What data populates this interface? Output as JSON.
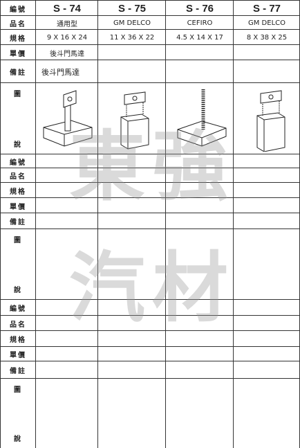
{
  "tables": [
    {
      "row_labels": [
        "編號",
        "品名",
        "規格",
        "單價",
        "備註"
      ],
      "figure_label": {
        "top": "圖",
        "bottom": "說"
      },
      "products": [
        {
          "code": "S - 74",
          "name": "通用型",
          "size": "9 X 16 X 24",
          "note": "後斗門馬達"
        },
        {
          "code": "S - 75",
          "name": "GM DELCO",
          "size": "11 X 36 X 22"
        },
        {
          "code": "S - 76",
          "name": "CEFIRO",
          "size": "4.5 X 14 X 17"
        },
        {
          "code": "S - 77",
          "name": "GM DELCO",
          "size": "8 X 38 X 25"
        }
      ]
    },
    {
      "row_labels": [
        "編號",
        "品名",
        "規格",
        "單價",
        "備註"
      ],
      "figure_label": {
        "top": "圖",
        "bottom": "說"
      }
    },
    {
      "row_labels": [
        "編號",
        "品名",
        "規格",
        "單價",
        "備註"
      ],
      "figure_label": {
        "top": "圖",
        "bottom": "說"
      }
    }
  ],
  "watermark": [
    "東強",
    "汽材"
  ]
}
